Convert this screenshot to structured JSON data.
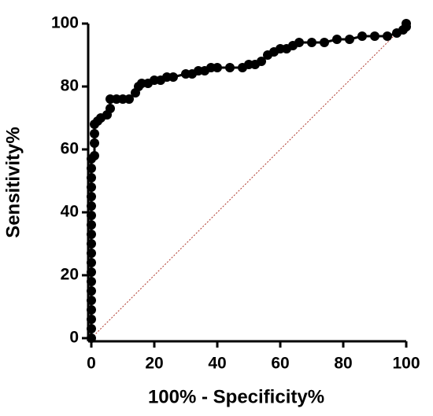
{
  "chart_data": {
    "type": "line",
    "x_label": "100% - Specificity%",
    "y_label": "Sensitivity%",
    "xlim": [
      0,
      100
    ],
    "ylim": [
      0,
      100
    ],
    "xticks": [
      0,
      20,
      40,
      60,
      80,
      100
    ],
    "yticks": [
      0,
      20,
      40,
      60,
      80,
      100
    ],
    "grid": false,
    "x": [
      0,
      0,
      0,
      0,
      0,
      0,
      0,
      0,
      0,
      0,
      0,
      0,
      0,
      0,
      0,
      0,
      0,
      0,
      0,
      0,
      1,
      1,
      1,
      1,
      2,
      3,
      5,
      6,
      6,
      8,
      10,
      12,
      14,
      15,
      16,
      18,
      20,
      22,
      24,
      26,
      30,
      32,
      34,
      36,
      38,
      40,
      44,
      48,
      50,
      52,
      54,
      56,
      58,
      60,
      62,
      64,
      66,
      70,
      74,
      78,
      82,
      86,
      90,
      94,
      97,
      99,
      100,
      100
    ],
    "series": [
      {
        "color": "#000000",
        "values": [
          0,
          3,
          6,
          9,
          12,
          15,
          18,
          21,
          24,
          27,
          30,
          33,
          36,
          39,
          42,
          45,
          48,
          51,
          54,
          57,
          58,
          62,
          65,
          68,
          69,
          70,
          71,
          73,
          76,
          76,
          76,
          76,
          78,
          80,
          81,
          81,
          82,
          82,
          83,
          83,
          84,
          84,
          85,
          85,
          86,
          86,
          86,
          86,
          87,
          87,
          88,
          90,
          91,
          92,
          92,
          93,
          94,
          94,
          94,
          95,
          95,
          96,
          96,
          96,
          97,
          98,
          99,
          100
        ]
      }
    ],
    "reference_line": {
      "x": [
        0,
        100
      ],
      "values": [
        0,
        100
      ],
      "color": "#b03a2e"
    }
  }
}
